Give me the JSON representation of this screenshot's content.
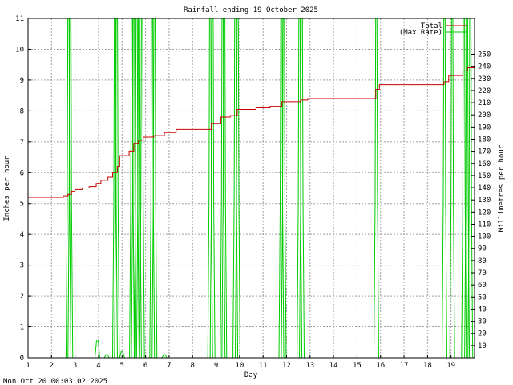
{
  "chart_data": {
    "type": "line",
    "title": "Rainfall ending 19 October 2025",
    "xlabel": "Day",
    "ylabel": "Inches per hour",
    "y2label": "Millimetres per hour",
    "footer": "Mon Oct 20 00:03:02 2025",
    "xlim": [
      1,
      20.0
    ],
    "ylim": [
      0,
      11
    ],
    "y2lim_mm": [
      0,
      279.4
    ],
    "xticks": [
      "1",
      "2",
      "3",
      "4",
      "5",
      "6",
      "7",
      "8",
      "9",
      "10",
      "11",
      "12",
      "13",
      "14",
      "15",
      "16",
      "17",
      "18",
      "19"
    ],
    "yticks": [
      "0",
      "1",
      "2",
      "3",
      "4",
      "5",
      "6",
      "7",
      "8",
      "9",
      "10",
      "11"
    ],
    "y2ticks": [
      "10",
      "20",
      "30",
      "40",
      "50",
      "60",
      "70",
      "80",
      "90",
      "100",
      "110",
      "120",
      "130",
      "140",
      "150",
      "160",
      "170",
      "180",
      "190",
      "200",
      "210",
      "220",
      "230",
      "240",
      "250"
    ],
    "grid": true,
    "legend_position": "top-right",
    "series": [
      {
        "name": "Total",
        "color": "#cc0000",
        "step": true,
        "points": [
          [
            1.0,
            5.2
          ],
          [
            2.1,
            5.2
          ],
          [
            2.5,
            5.25
          ],
          [
            2.7,
            5.3
          ],
          [
            2.85,
            5.4
          ],
          [
            3.0,
            5.45
          ],
          [
            3.3,
            5.5
          ],
          [
            3.6,
            5.55
          ],
          [
            3.9,
            5.65
          ],
          [
            4.1,
            5.75
          ],
          [
            4.4,
            5.85
          ],
          [
            4.6,
            6.0
          ],
          [
            4.8,
            6.2
          ],
          [
            4.9,
            6.55
          ],
          [
            5.3,
            6.7
          ],
          [
            5.5,
            6.95
          ],
          [
            5.7,
            7.05
          ],
          [
            5.9,
            7.15
          ],
          [
            6.35,
            7.2
          ],
          [
            6.8,
            7.3
          ],
          [
            7.3,
            7.4
          ],
          [
            8.8,
            7.6
          ],
          [
            9.2,
            7.8
          ],
          [
            9.6,
            7.85
          ],
          [
            9.9,
            8.05
          ],
          [
            10.7,
            8.1
          ],
          [
            11.3,
            8.15
          ],
          [
            11.8,
            8.3
          ],
          [
            12.6,
            8.35
          ],
          [
            12.9,
            8.4
          ],
          [
            15.8,
            8.7
          ],
          [
            15.95,
            8.85
          ],
          [
            18.0,
            8.85
          ],
          [
            18.7,
            8.95
          ],
          [
            18.9,
            9.15
          ],
          [
            19.5,
            9.3
          ],
          [
            19.7,
            9.4
          ],
          [
            20.0,
            9.4
          ]
        ]
      },
      {
        "name": "(Max Rate)",
        "color": "#00cc00",
        "spikes": [
          2.72,
          2.8,
          4.7,
          4.78,
          5.42,
          5.5,
          5.62,
          5.72,
          5.85,
          6.28,
          6.38,
          8.75,
          8.85,
          9.28,
          9.35,
          9.82,
          9.92,
          11.78,
          11.88,
          12.55,
          12.65,
          15.82,
          18.72,
          19.05,
          19.55,
          19.68,
          19.82
        ],
        "bumps": [
          [
            3.95,
            0.55
          ],
          [
            4.35,
            0.1
          ],
          [
            5.0,
            0.2
          ],
          [
            6.8,
            0.1
          ]
        ]
      }
    ]
  }
}
